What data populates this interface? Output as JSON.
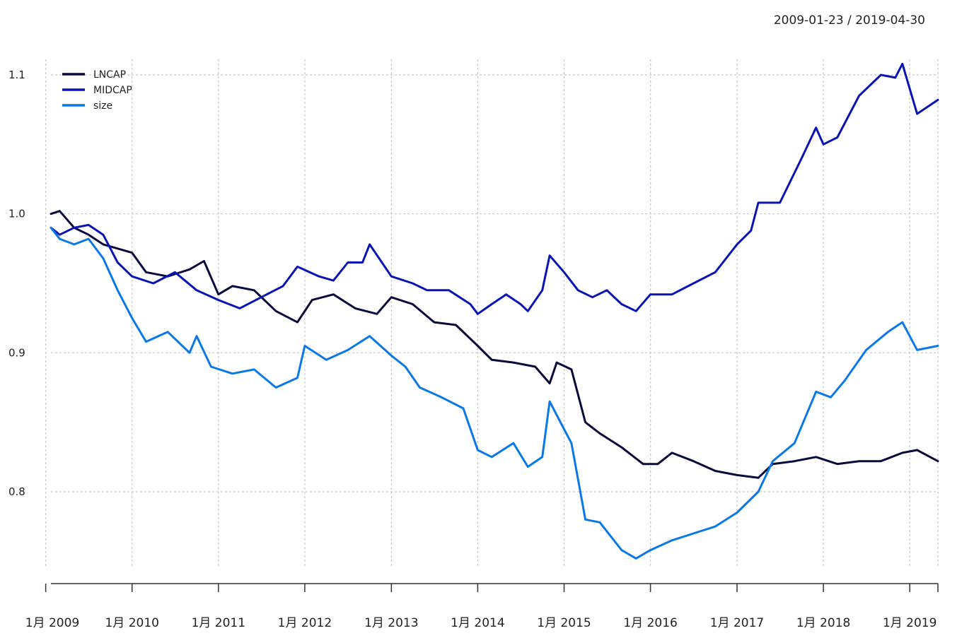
{
  "chart_data": {
    "type": "line",
    "date_range": "2009-01-23 / 2019-04-30",
    "ylim": [
      0.75,
      1.11
    ],
    "y_ticks": [
      0.8,
      0.9,
      1.0,
      1.1
    ],
    "y_tick_labels": [
      "0.8",
      "0.9",
      "1.0",
      "1.1"
    ],
    "x_ticks": [
      "2009-01",
      "2010-01",
      "2011-01",
      "2012-01",
      "2013-01",
      "2014-01",
      "2015-01",
      "2016-01",
      "2017-01",
      "2018-01",
      "2019-01"
    ],
    "x_tick_labels": [
      "1月 2009",
      "1月 2010",
      "1月 2011",
      "1月 2012",
      "1月 2013",
      "1月 2014",
      "1月 2015",
      "1月 2016",
      "1月 2017",
      "1月 2018",
      "1月 2019"
    ],
    "x_start": "2009-01-23",
    "x_end": "2019-04-30",
    "grid": true,
    "legend_position": "top-left",
    "series": [
      {
        "name": "LNCAP",
        "color": "#0a0a3c",
        "points": [
          [
            "2009-01-23",
            1.0
          ],
          [
            "2009-03",
            1.002
          ],
          [
            "2009-05",
            0.99
          ],
          [
            "2009-07",
            0.985
          ],
          [
            "2009-09",
            0.978
          ],
          [
            "2009-11",
            0.975
          ],
          [
            "2010-01",
            0.972
          ],
          [
            "2010-03",
            0.958
          ],
          [
            "2010-06",
            0.955
          ],
          [
            "2010-09",
            0.96
          ],
          [
            "2010-11",
            0.966
          ],
          [
            "2011-01",
            0.942
          ],
          [
            "2011-03",
            0.948
          ],
          [
            "2011-06",
            0.945
          ],
          [
            "2011-09",
            0.93
          ],
          [
            "2011-12",
            0.922
          ],
          [
            "2012-02",
            0.938
          ],
          [
            "2012-05",
            0.942
          ],
          [
            "2012-08",
            0.932
          ],
          [
            "2012-11",
            0.928
          ],
          [
            "2013-01",
            0.94
          ],
          [
            "2013-04",
            0.935
          ],
          [
            "2013-07",
            0.922
          ],
          [
            "2013-10",
            0.92
          ],
          [
            "2014-01",
            0.905
          ],
          [
            "2014-03",
            0.895
          ],
          [
            "2014-06",
            0.893
          ],
          [
            "2014-09",
            0.89
          ],
          [
            "2014-11",
            0.878
          ],
          [
            "2014-12",
            0.893
          ],
          [
            "2015-02",
            0.888
          ],
          [
            "2015-04",
            0.85
          ],
          [
            "2015-06",
            0.842
          ],
          [
            "2015-09",
            0.832
          ],
          [
            "2015-12",
            0.82
          ],
          [
            "2016-02",
            0.82
          ],
          [
            "2016-04",
            0.828
          ],
          [
            "2016-07",
            0.822
          ],
          [
            "2016-10",
            0.815
          ],
          [
            "2017-01",
            0.812
          ],
          [
            "2017-04",
            0.81
          ],
          [
            "2017-06",
            0.82
          ],
          [
            "2017-09",
            0.822
          ],
          [
            "2017-12",
            0.825
          ],
          [
            "2018-03",
            0.82
          ],
          [
            "2018-06",
            0.822
          ],
          [
            "2018-09",
            0.822
          ],
          [
            "2018-12",
            0.828
          ],
          [
            "2019-02",
            0.83
          ],
          [
            "2019-04-30",
            0.822
          ]
        ]
      },
      {
        "name": "MIDCAP",
        "color": "#0a14b4",
        "points": [
          [
            "2009-01-23",
            0.99
          ],
          [
            "2009-03",
            0.985
          ],
          [
            "2009-05",
            0.99
          ],
          [
            "2009-07",
            0.992
          ],
          [
            "2009-09",
            0.985
          ],
          [
            "2009-11",
            0.965
          ],
          [
            "2010-01",
            0.955
          ],
          [
            "2010-04",
            0.95
          ],
          [
            "2010-07",
            0.958
          ],
          [
            "2010-10",
            0.945
          ],
          [
            "2011-01",
            0.938
          ],
          [
            "2011-04",
            0.932
          ],
          [
            "2011-07",
            0.94
          ],
          [
            "2011-10",
            0.948
          ],
          [
            "2011-12",
            0.962
          ],
          [
            "2012-03",
            0.955
          ],
          [
            "2012-05",
            0.952
          ],
          [
            "2012-07",
            0.965
          ],
          [
            "2012-09",
            0.965
          ],
          [
            "2012-10",
            0.978
          ],
          [
            "2013-01",
            0.955
          ],
          [
            "2013-04",
            0.95
          ],
          [
            "2013-06",
            0.945
          ],
          [
            "2013-09",
            0.945
          ],
          [
            "2013-12",
            0.935
          ],
          [
            "2014-01",
            0.928
          ],
          [
            "2014-03",
            0.935
          ],
          [
            "2014-05",
            0.942
          ],
          [
            "2014-07",
            0.935
          ],
          [
            "2014-08",
            0.93
          ],
          [
            "2014-10",
            0.945
          ],
          [
            "2014-11",
            0.97
          ],
          [
            "2015-01",
            0.958
          ],
          [
            "2015-03",
            0.945
          ],
          [
            "2015-05",
            0.94
          ],
          [
            "2015-07",
            0.945
          ],
          [
            "2015-09",
            0.935
          ],
          [
            "2015-11",
            0.93
          ],
          [
            "2016-01",
            0.942
          ],
          [
            "2016-04",
            0.942
          ],
          [
            "2016-07",
            0.95
          ],
          [
            "2016-10",
            0.958
          ],
          [
            "2017-01",
            0.978
          ],
          [
            "2017-03",
            0.988
          ],
          [
            "2017-04",
            1.008
          ],
          [
            "2017-07",
            1.008
          ],
          [
            "2017-10",
            1.04
          ],
          [
            "2017-12",
            1.062
          ],
          [
            "2018-01",
            1.05
          ],
          [
            "2018-03",
            1.055
          ],
          [
            "2018-06",
            1.085
          ],
          [
            "2018-09",
            1.1
          ],
          [
            "2018-11",
            1.098
          ],
          [
            "2018-12",
            1.108
          ],
          [
            "2019-02",
            1.072
          ],
          [
            "2019-04-30",
            1.082
          ]
        ]
      },
      {
        "name": "size",
        "color": "#0a78e6",
        "points": [
          [
            "2009-01-23",
            0.99
          ],
          [
            "2009-03",
            0.982
          ],
          [
            "2009-05",
            0.978
          ],
          [
            "2009-07",
            0.982
          ],
          [
            "2009-09",
            0.968
          ],
          [
            "2009-11",
            0.945
          ],
          [
            "2010-01",
            0.925
          ],
          [
            "2010-03",
            0.908
          ],
          [
            "2010-06",
            0.915
          ],
          [
            "2010-09",
            0.9
          ],
          [
            "2010-10",
            0.912
          ],
          [
            "2010-12",
            0.89
          ],
          [
            "2011-03",
            0.885
          ],
          [
            "2011-06",
            0.888
          ],
          [
            "2011-09",
            0.875
          ],
          [
            "2011-12",
            0.882
          ],
          [
            "2012-01",
            0.905
          ],
          [
            "2012-04",
            0.895
          ],
          [
            "2012-07",
            0.902
          ],
          [
            "2012-10",
            0.912
          ],
          [
            "2013-01",
            0.898
          ],
          [
            "2013-03",
            0.89
          ],
          [
            "2013-05",
            0.875
          ],
          [
            "2013-08",
            0.868
          ],
          [
            "2013-11",
            0.86
          ],
          [
            "2014-01",
            0.83
          ],
          [
            "2014-03",
            0.825
          ],
          [
            "2014-06",
            0.835
          ],
          [
            "2014-08",
            0.818
          ],
          [
            "2014-10",
            0.825
          ],
          [
            "2014-11",
            0.865
          ],
          [
            "2015-01",
            0.845
          ],
          [
            "2015-02",
            0.835
          ],
          [
            "2015-04",
            0.78
          ],
          [
            "2015-06",
            0.778
          ],
          [
            "2015-09",
            0.758
          ],
          [
            "2015-11",
            0.752
          ],
          [
            "2016-01",
            0.758
          ],
          [
            "2016-04",
            0.765
          ],
          [
            "2016-07",
            0.77
          ],
          [
            "2016-10",
            0.775
          ],
          [
            "2017-01",
            0.785
          ],
          [
            "2017-04",
            0.8
          ],
          [
            "2017-06",
            0.822
          ],
          [
            "2017-09",
            0.835
          ],
          [
            "2017-12",
            0.872
          ],
          [
            "2018-02",
            0.868
          ],
          [
            "2018-04",
            0.88
          ],
          [
            "2018-07",
            0.902
          ],
          [
            "2018-10",
            0.915
          ],
          [
            "2018-12",
            0.922
          ],
          [
            "2019-02",
            0.902
          ],
          [
            "2019-04-30",
            0.905
          ]
        ]
      }
    ]
  }
}
